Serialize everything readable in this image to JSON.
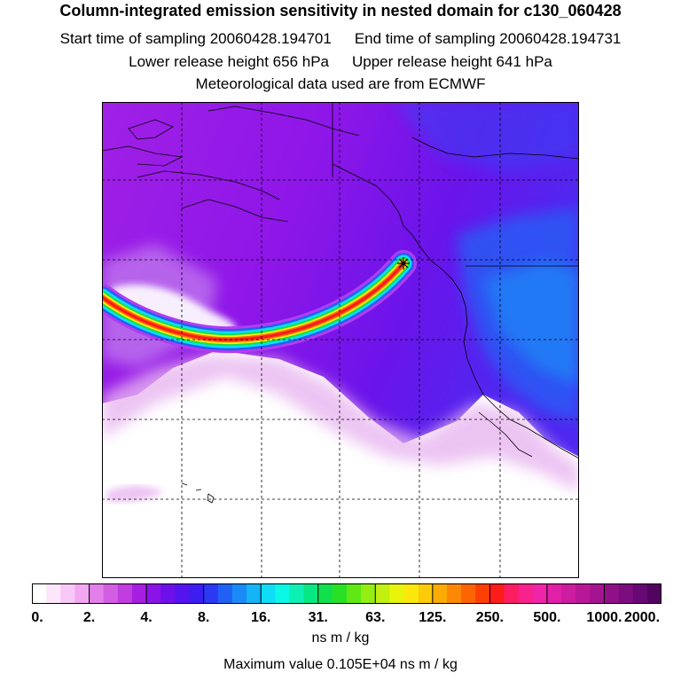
{
  "header": {
    "title": "Column-integrated emission sensitivity in nested domain for c130_060428",
    "start_label": "Start time of sampling 20060428.194701",
    "end_label": "End time of sampling 20060428.194731",
    "lower_label": "Lower release height  656 hPa",
    "upper_label": "Upper release height  641 hPa",
    "met_label": "Meteorological data used are from ECMWF"
  },
  "legend": {
    "tick_labels": [
      "0.",
      "2.",
      "4.",
      "8.",
      "16.",
      "31.",
      "63.",
      "125.",
      "250.",
      "500.",
      "1000.",
      "2000."
    ],
    "colors": [
      "#ffffff",
      "#fde6fb",
      "#f8c8f6",
      "#f2a8f1",
      "#e27fe9",
      "#d45ee3",
      "#c13de0",
      "#a61ee0",
      "#8a14e6",
      "#6d10ea",
      "#5514ee",
      "#3c1ef0",
      "#2c38f2",
      "#2060f4",
      "#1a8af6",
      "#14b4f6",
      "#10dcf6",
      "#0cf8e6",
      "#0cf0b4",
      "#08e882",
      "#10e04c",
      "#2ae024",
      "#60e814",
      "#94ee14",
      "#c2f010",
      "#e8f40c",
      "#fce80c",
      "#fccc08",
      "#fcaa04",
      "#fc8804",
      "#fc6404",
      "#fc4004",
      "#fc1c1c",
      "#fc1e60",
      "#f8228c",
      "#f024a8",
      "#e020a8",
      "#cc1ca0",
      "#b81898",
      "#a41490",
      "#901088",
      "#7c0c80",
      "#680874",
      "#52045e"
    ],
    "units": "ns m / kg",
    "max_value": "Maximum value  0.105E+04 ns m / kg"
  },
  "map_data": {
    "release_marker": "release-point"
  }
}
